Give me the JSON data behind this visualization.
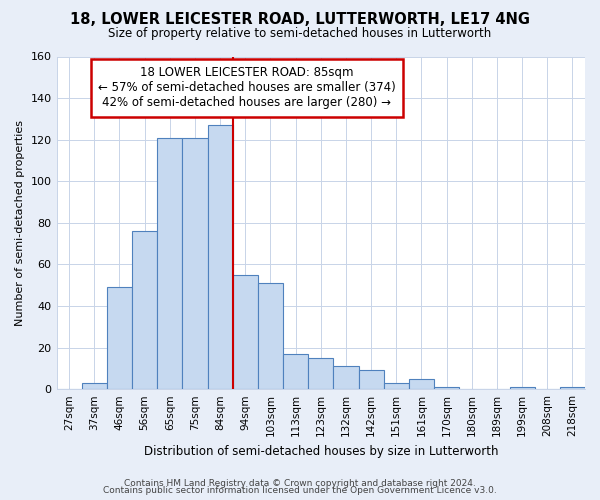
{
  "title": "18, LOWER LEICESTER ROAD, LUTTERWORTH, LE17 4NG",
  "subtitle": "Size of property relative to semi-detached houses in Lutterworth",
  "xlabel": "Distribution of semi-detached houses by size in Lutterworth",
  "ylabel": "Number of semi-detached properties",
  "bin_labels": [
    "27sqm",
    "37sqm",
    "46sqm",
    "56sqm",
    "65sqm",
    "75sqm",
    "84sqm",
    "94sqm",
    "103sqm",
    "113sqm",
    "123sqm",
    "132sqm",
    "142sqm",
    "151sqm",
    "161sqm",
    "170sqm",
    "180sqm",
    "189sqm",
    "199sqm",
    "208sqm",
    "218sqm"
  ],
  "bar_heights": [
    0,
    3,
    49,
    76,
    121,
    121,
    127,
    55,
    51,
    17,
    15,
    11,
    9,
    3,
    5,
    1,
    0,
    0,
    1,
    0,
    1
  ],
  "bar_color": "#c6d9f0",
  "bar_edge_color": "#4f81bd",
  "vline_index": 6,
  "vline_color": "#cc0000",
  "annotation_title": "18 LOWER LEICESTER ROAD: 85sqm",
  "annotation_line1": "← 57% of semi-detached houses are smaller (374)",
  "annotation_line2": "42% of semi-detached houses are larger (280) →",
  "annotation_box_color": "#ffffff",
  "annotation_box_edge": "#cc0000",
  "ylim": [
    0,
    160
  ],
  "yticks": [
    0,
    20,
    40,
    60,
    80,
    100,
    120,
    140,
    160
  ],
  "footer1": "Contains HM Land Registry data © Crown copyright and database right 2024.",
  "footer2": "Contains public sector information licensed under the Open Government Licence v3.0.",
  "background_color": "#e8eef8",
  "plot_background": "#ffffff"
}
